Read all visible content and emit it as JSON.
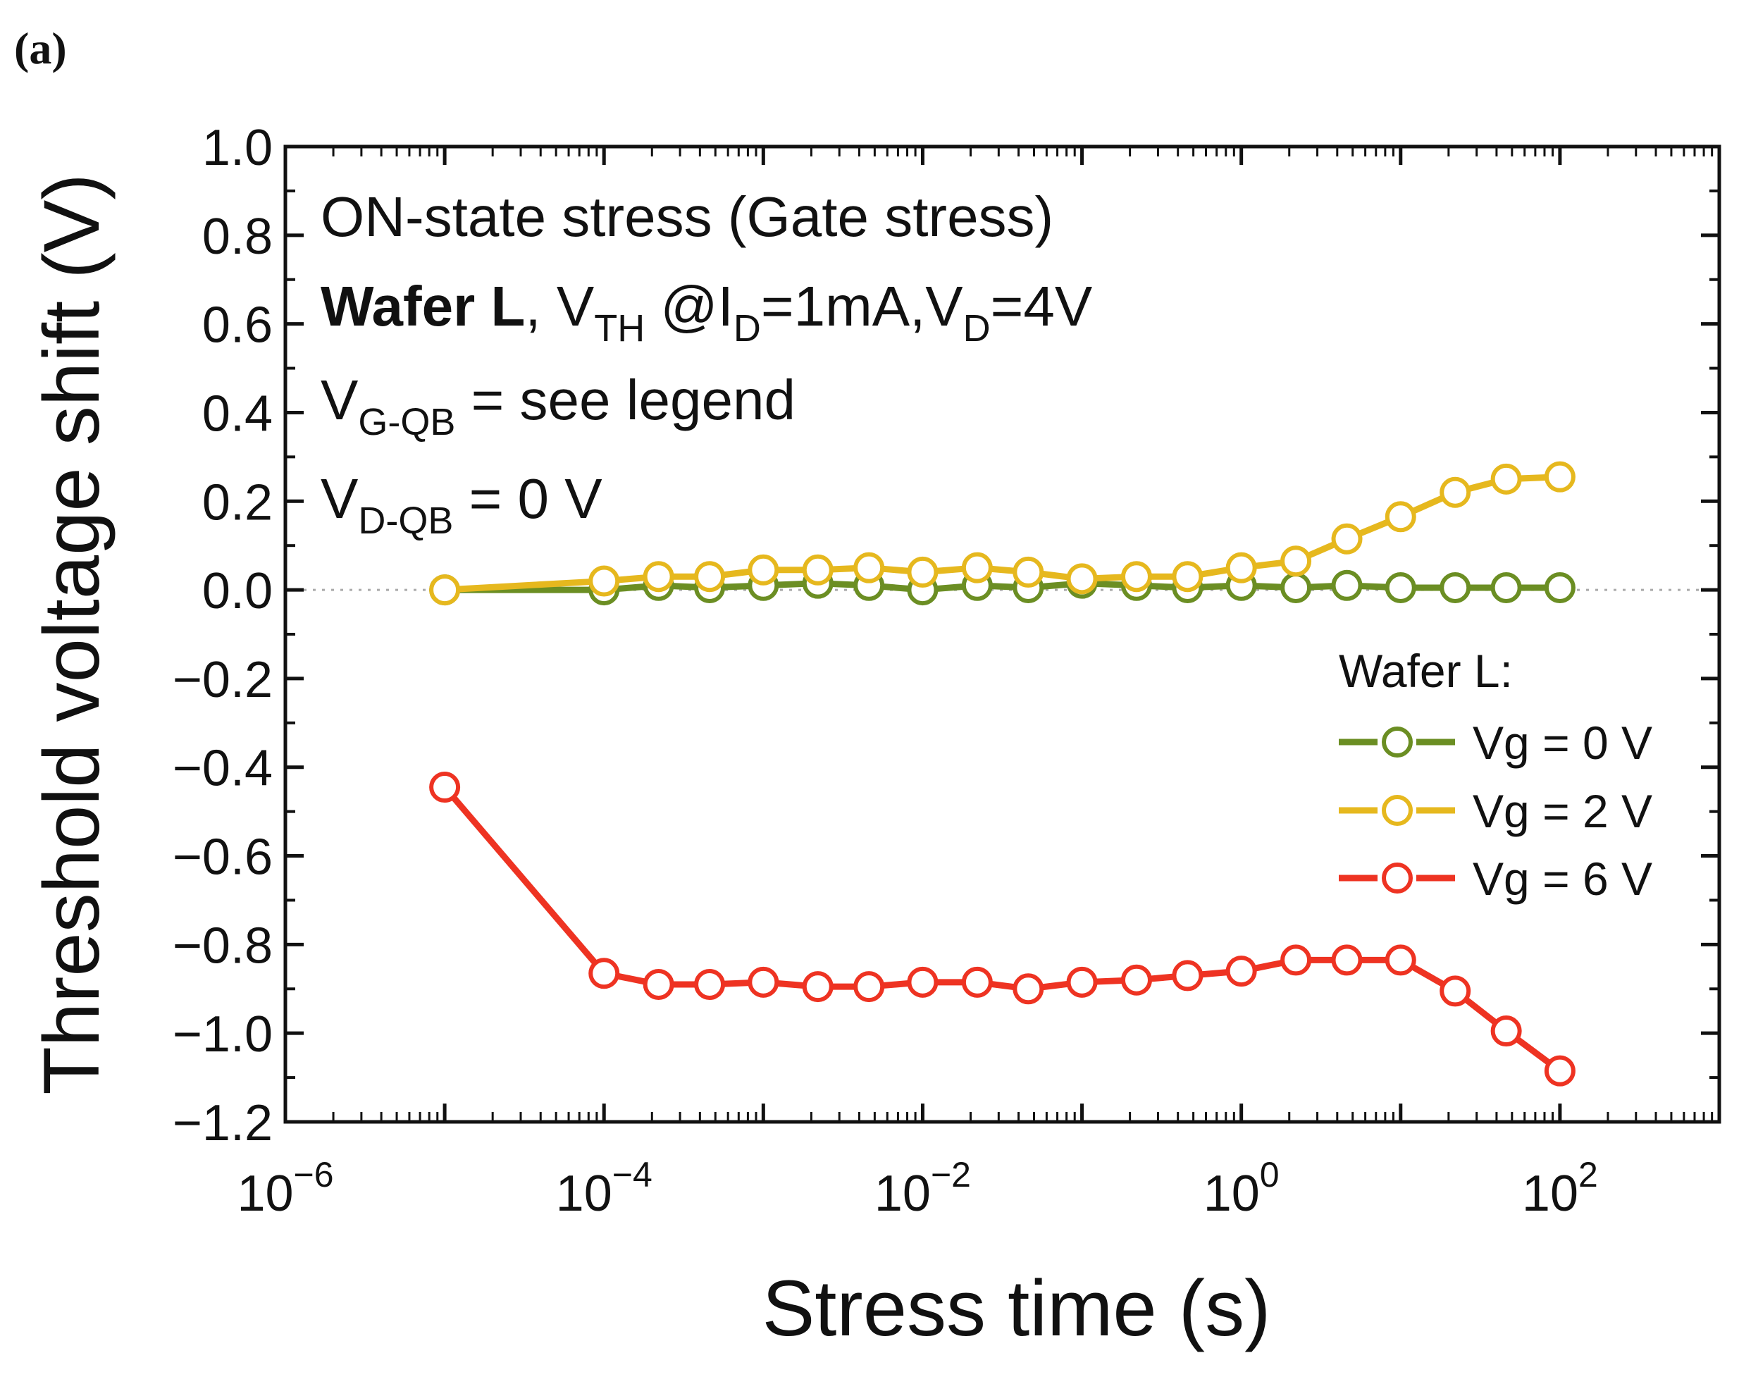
{
  "panel_label": "(a)",
  "annotations": {
    "line1": "ON-state stress (Gate stress)",
    "line2_bold": "Wafer L",
    "line2_sep": ", V",
    "line2_sub1": "TH",
    "line2_mid": " @I",
    "line2_sub2": "D",
    "line2_mid2": "=1mA,V",
    "line2_sub3": "D",
    "line2_end": "=4V",
    "line3_v": "V",
    "line3_sub": "G-QB",
    "line3_rest": " = see legend",
    "line4_v": "V",
    "line4_sub": "D-QB",
    "line4_rest": " = 0 V"
  },
  "legend": {
    "title": "Wafer L:",
    "entries": [
      "Vg = 0 V",
      "Vg = 2 V",
      "Vg = 6 V"
    ]
  },
  "colors": {
    "vg0": "#6b8e23",
    "vg2": "#e6b81e",
    "vg6": "#ee3322",
    "axis": "#111111",
    "zero_line": "#aaaaaa"
  },
  "chart_data": {
    "type": "line",
    "title": "",
    "xlabel": "Stress time (s)",
    "ylabel": "Threshold voltage shift (V)",
    "xscale": "log",
    "xlim": [
      1e-06,
      1000
    ],
    "ylim": [
      -1.2,
      1.0
    ],
    "x_ticks": [
      {
        "mantissa": "10",
        "exp": "−6",
        "value": 1e-06
      },
      {
        "mantissa": "10",
        "exp": "−4",
        "value": 0.0001
      },
      {
        "mantissa": "10",
        "exp": "−2",
        "value": 0.01
      },
      {
        "mantissa": "10",
        "exp": "0",
        "value": 1
      },
      {
        "mantissa": "10",
        "exp": "2",
        "value": 100
      }
    ],
    "y_ticks": [
      "1.0",
      "0.8",
      "0.6",
      "0.4",
      "0.2",
      "0.0",
      "−0.2",
      "−0.4",
      "−0.6",
      "−0.8",
      "−1.0",
      "−1.2"
    ],
    "y_tick_values": [
      1.0,
      0.8,
      0.6,
      0.4,
      0.2,
      0.0,
      -0.2,
      -0.4,
      -0.6,
      -0.8,
      -1.0,
      -1.2
    ],
    "x": [
      1e-05,
      0.0001,
      0.00022,
      0.00046,
      0.001,
      0.0022,
      0.0046,
      0.01,
      0.022,
      0.046,
      0.1,
      0.22,
      0.46,
      1,
      2.2,
      4.6,
      10,
      22,
      46,
      100
    ],
    "series": [
      {
        "name": "Vg = 0 V",
        "color_key": "vg0",
        "values": [
          0.0,
          0.0,
          0.01,
          0.005,
          0.01,
          0.015,
          0.01,
          0.0,
          0.01,
          0.005,
          0.015,
          0.01,
          0.005,
          0.01,
          0.005,
          0.01,
          0.005,
          0.005,
          0.005,
          0.005
        ]
      },
      {
        "name": "Vg = 2 V",
        "color_key": "vg2",
        "values": [
          0.0,
          0.02,
          0.03,
          0.03,
          0.045,
          0.045,
          0.05,
          0.04,
          0.05,
          0.04,
          0.025,
          0.03,
          0.03,
          0.05,
          0.065,
          0.115,
          0.165,
          0.22,
          0.25,
          0.255
        ]
      },
      {
        "name": "Vg = 6 V",
        "color_key": "vg6",
        "values": [
          -0.445,
          -0.865,
          -0.89,
          -0.89,
          -0.885,
          -0.895,
          -0.895,
          -0.885,
          -0.885,
          -0.9,
          -0.885,
          -0.88,
          -0.87,
          -0.86,
          -0.835,
          -0.835,
          -0.835,
          -0.905,
          -0.995,
          -1.085
        ]
      }
    ],
    "reference_line": {
      "y": 0.0,
      "style": "dotted"
    },
    "legend_position": "right"
  }
}
